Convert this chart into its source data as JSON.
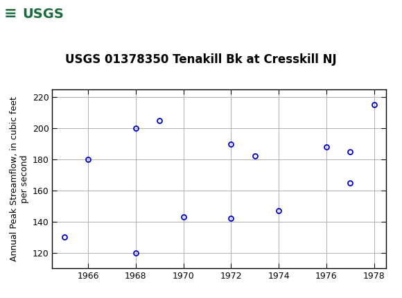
{
  "title": "USGS 01378350 Tenakill Bk at Cresskill NJ",
  "ylabel": "Annual Peak Streamflow, in cubic feet\nper second",
  "xlim": [
    1964.5,
    1978.5
  ],
  "ylim": [
    110,
    225
  ],
  "yticks": [
    120,
    140,
    160,
    180,
    200,
    220
  ],
  "xticks": [
    1966,
    1968,
    1970,
    1972,
    1974,
    1976,
    1978
  ],
  "data_x": [
    1965,
    1966,
    1968,
    1968,
    1969,
    1970,
    1972,
    1972,
    1973,
    1974,
    1976,
    1977,
    1977,
    1978
  ],
  "data_y": [
    130,
    180,
    120,
    200,
    205,
    143,
    190,
    142,
    182,
    147,
    188,
    165,
    185,
    215
  ],
  "marker_color": "#0000CC",
  "marker_size": 5,
  "marker_facecolor": "none",
  "grid_color": "#b0b0b0",
  "background_color": "#ffffff",
  "header_color": "#1a6b3c",
  "usgs_logo_text": "USGS",
  "title_fontsize": 12,
  "axis_label_fontsize": 9,
  "tick_label_fontsize": 9,
  "header_text_color": "#ffffff"
}
